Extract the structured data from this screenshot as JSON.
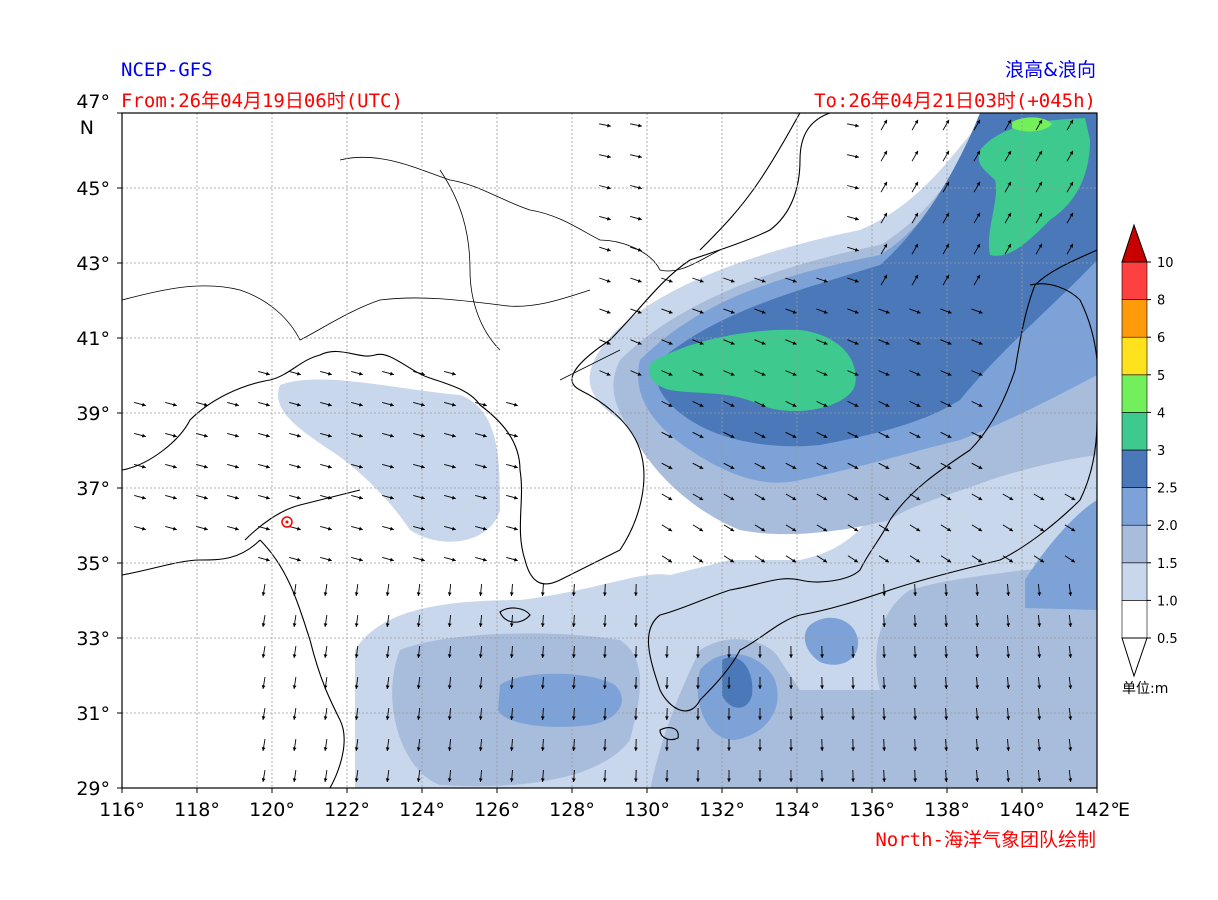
{
  "header": {
    "model": "NCEP-GFS",
    "product": "浪高&浪向",
    "from_time": "From:26年04月19日06时(UTC)",
    "to_time": "To:26年04月21日03时(+045h)"
  },
  "footer": {
    "credit": "North-海洋气象团队绘制"
  },
  "axes": {
    "lat_labels": [
      "47°",
      "45°",
      "43°",
      "41°",
      "39°",
      "37°",
      "35°",
      "33°",
      "31°",
      "29°"
    ],
    "lat_unit": "N",
    "lon_labels": [
      "116°",
      "118°",
      "120°",
      "122°",
      "124°",
      "126°",
      "128°",
      "130°",
      "132°",
      "134°",
      "136°",
      "138°",
      "140°",
      "142°"
    ],
    "lon_unit": "E"
  },
  "colorbar": {
    "unit_label": "单位:m",
    "levels": [
      "0.5",
      "1.0",
      "1.5",
      "2.0",
      "2.5",
      "3",
      "4",
      "5",
      "6",
      "8",
      "10"
    ],
    "colors": [
      "#ffffff",
      "#c9d7ec",
      "#a8bcdc",
      "#7da2d8",
      "#4a78b8",
      "#3ec98f",
      "#72ef5a",
      "#ffe21e",
      "#ff9a0a",
      "#ff4040",
      "#c80000"
    ]
  },
  "colors": {
    "land_line": "#000000",
    "grid": "#9a9a9a",
    "marker": "#ff0000"
  }
}
